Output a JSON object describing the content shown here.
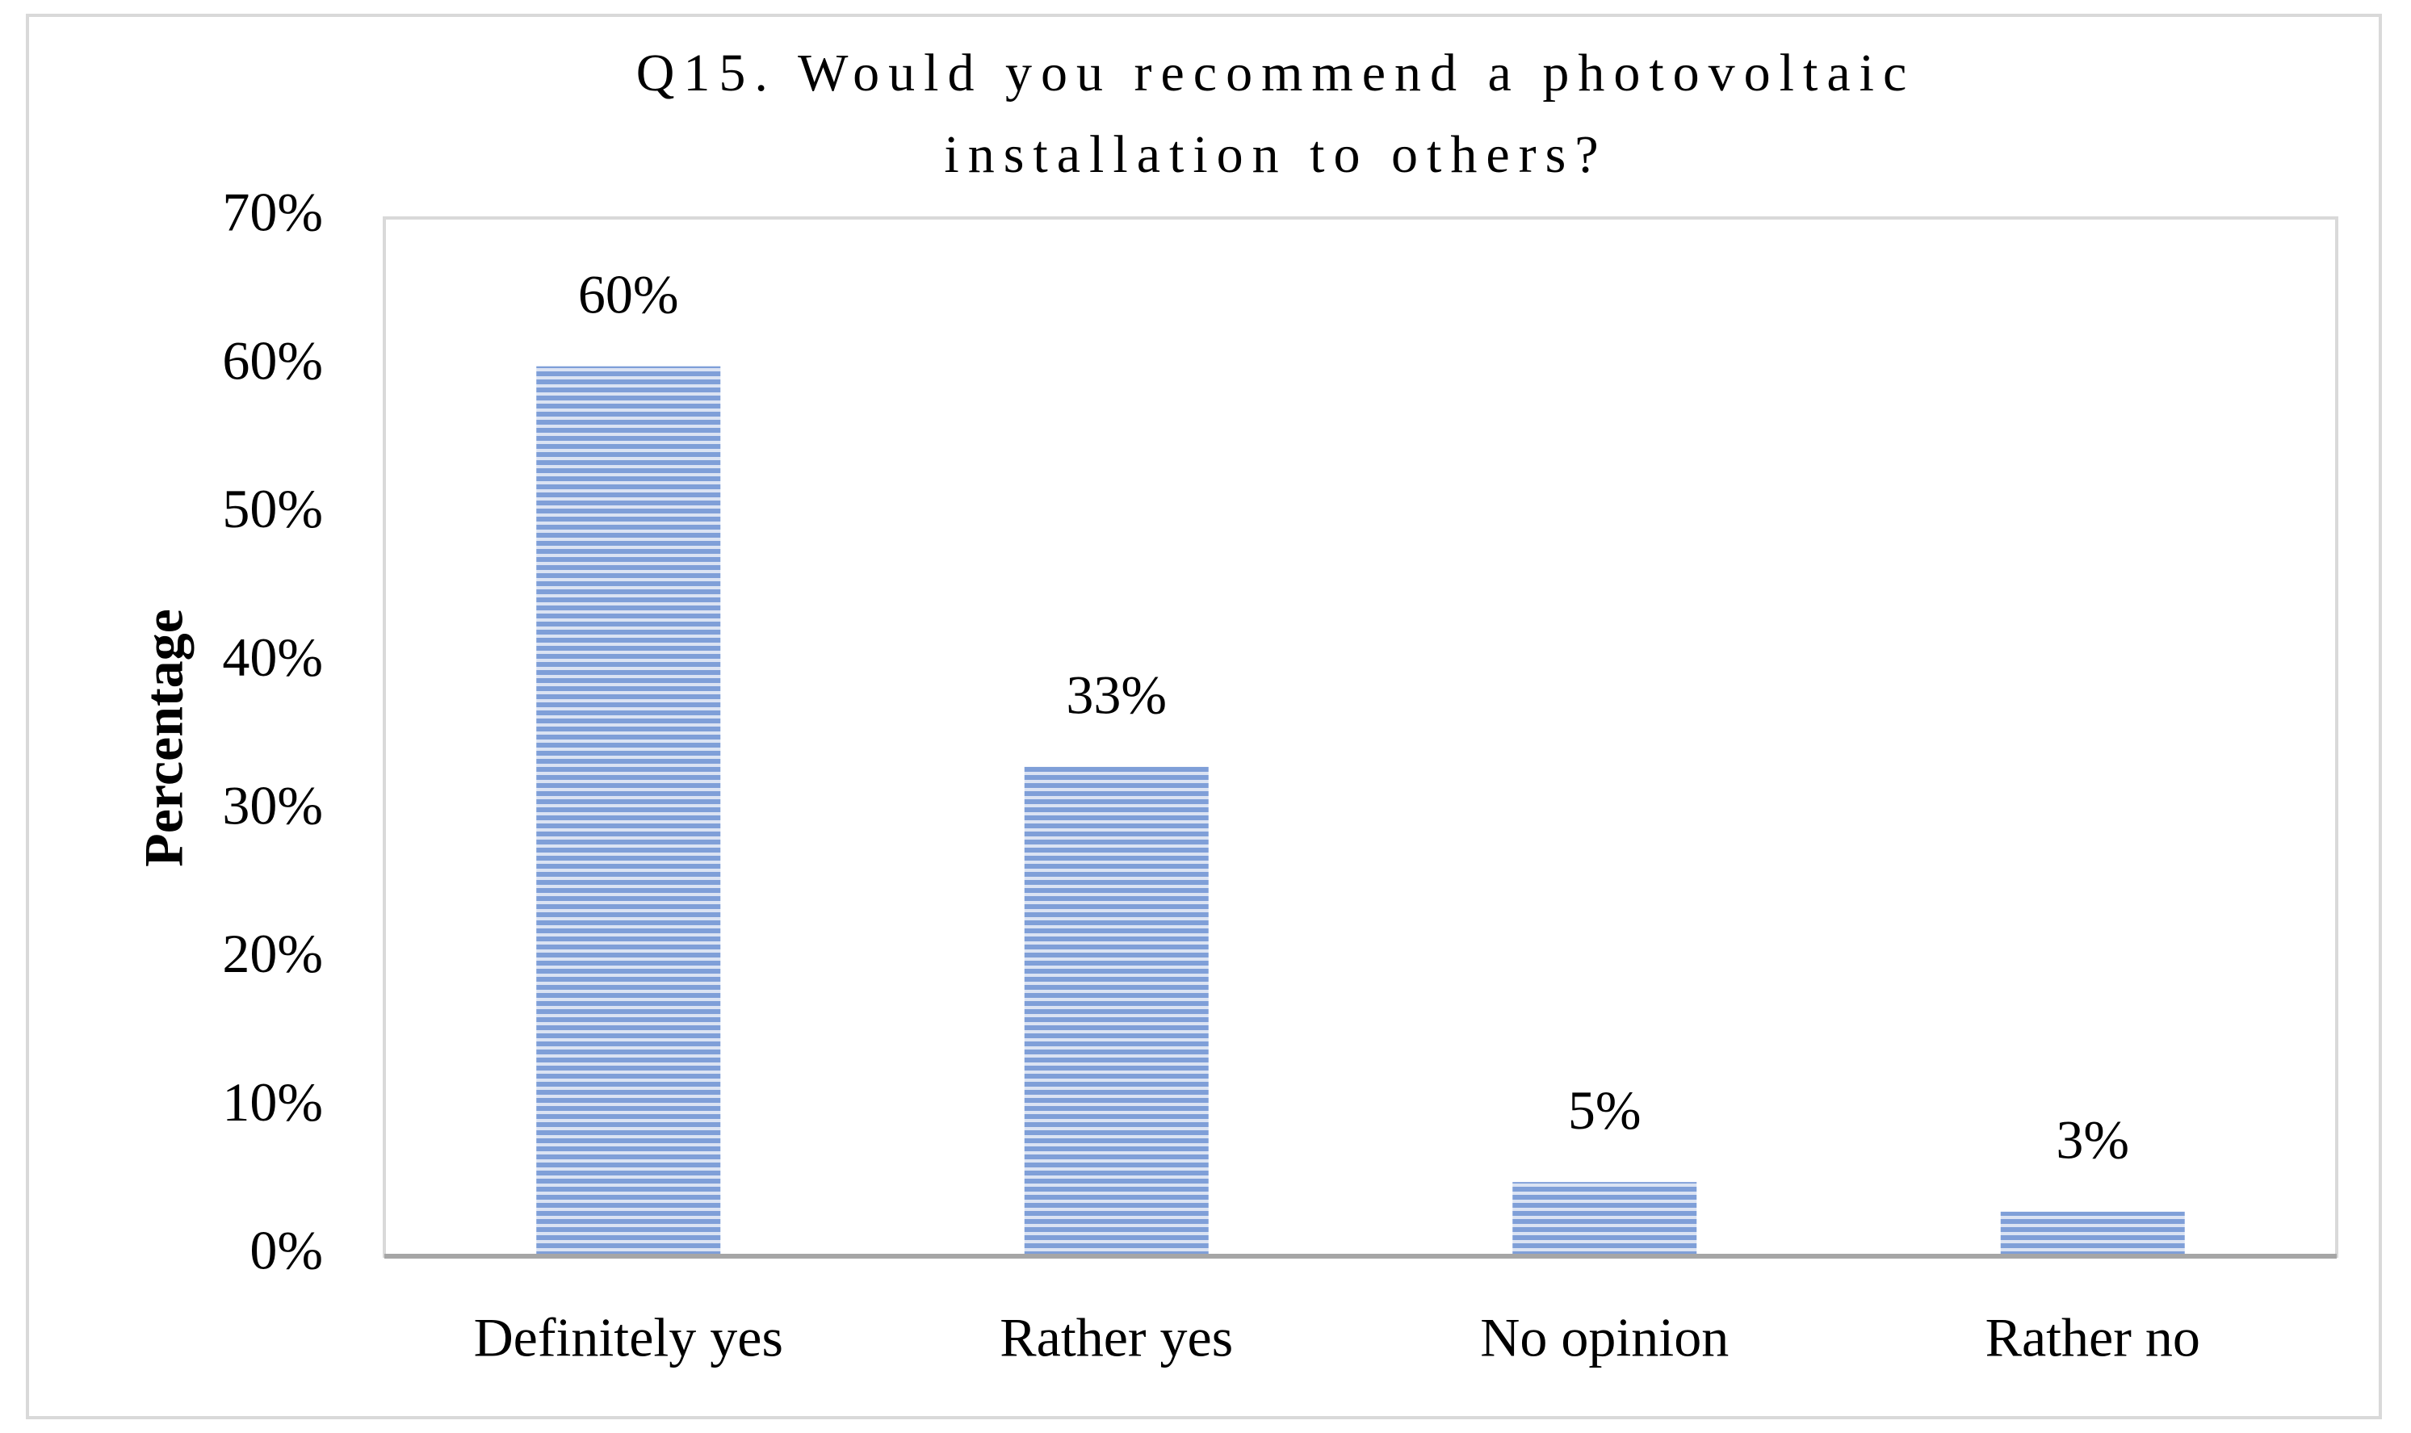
{
  "chart_data": {
    "type": "bar",
    "title": [
      "Q15. Would you recommend a photovoltaic",
      "installation to others?"
    ],
    "ylabel": "Percentage",
    "categories": [
      "Definitely yes",
      "Rather yes",
      "No opinion",
      "Rather no"
    ],
    "values": [
      60,
      33,
      5,
      3
    ],
    "value_labels": [
      "60%",
      "33%",
      "5%",
      "3%"
    ],
    "color": "#8faadc",
    "ylim": [
      0,
      70
    ],
    "yticks": [
      {
        "value": 0,
        "label": "0%"
      },
      {
        "value": 10,
        "label": "10%"
      },
      {
        "value": 20,
        "label": "20%"
      },
      {
        "value": 30,
        "label": "30%"
      },
      {
        "value": 40,
        "label": "40%"
      },
      {
        "value": 50,
        "label": "50%"
      },
      {
        "value": 60,
        "label": "60%"
      },
      {
        "value": 70,
        "label": "70%"
      }
    ],
    "grid": false
  }
}
